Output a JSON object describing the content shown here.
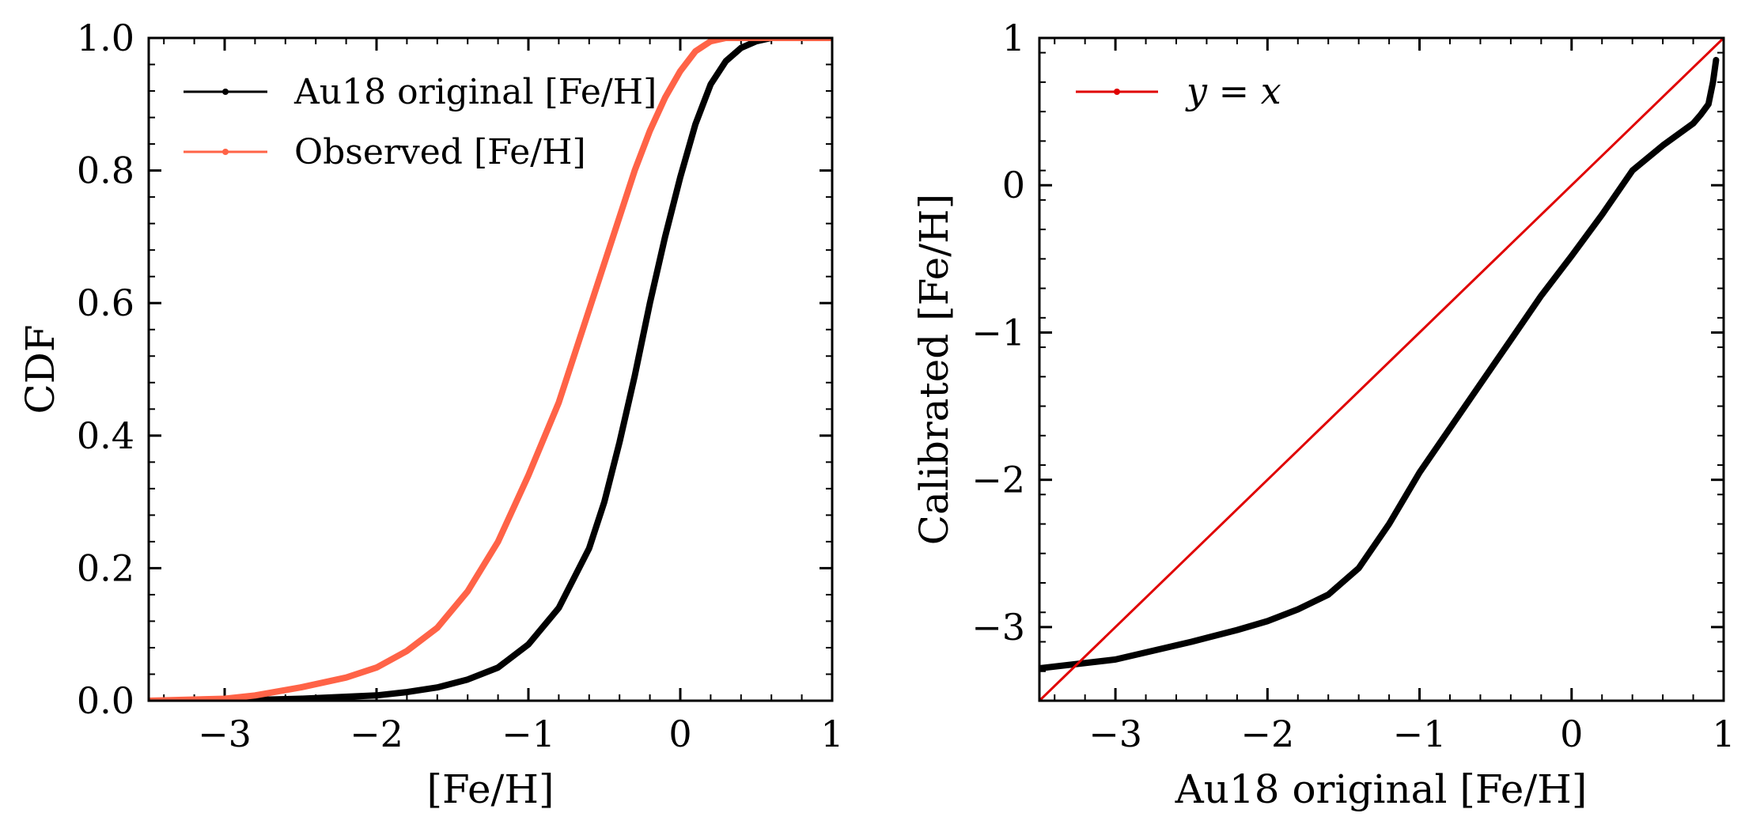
{
  "chart_data": [
    {
      "type": "line",
      "title": "",
      "xlabel": "[Fe/H]",
      "ylabel": "CDF",
      "xlim": [
        -3.5,
        1.0
      ],
      "ylim": [
        0.0,
        1.0
      ],
      "xticks": [
        -3,
        -2,
        -1,
        0,
        1
      ],
      "xtick_labels": [
        "−3",
        "−2",
        "−1",
        "0",
        "1"
      ],
      "yticks": [
        0.0,
        0.2,
        0.4,
        0.6,
        0.8,
        1.0
      ],
      "ytick_labels": [
        "0.0",
        "0.2",
        "0.4",
        "0.6",
        "0.8",
        "1.0"
      ],
      "grid": false,
      "legend_position": "top-left",
      "series": [
        {
          "name": "Au18 original [Fe/H]",
          "color": "#000000",
          "x": [
            -3.5,
            -3.0,
            -2.5,
            -2.0,
            -1.8,
            -1.6,
            -1.4,
            -1.2,
            -1.0,
            -0.8,
            -0.6,
            -0.5,
            -0.4,
            -0.3,
            -0.2,
            -0.1,
            0.0,
            0.1,
            0.2,
            0.3,
            0.4,
            0.5,
            0.6,
            0.8,
            1.0
          ],
          "y": [
            0.0,
            0.0,
            0.003,
            0.008,
            0.013,
            0.02,
            0.032,
            0.05,
            0.085,
            0.14,
            0.23,
            0.3,
            0.39,
            0.49,
            0.6,
            0.7,
            0.79,
            0.87,
            0.93,
            0.965,
            0.985,
            0.995,
            1.0,
            1.0,
            1.0
          ]
        },
        {
          "name": "Observed [Fe/H]",
          "color": "#FF6347",
          "x": [
            -3.5,
            -3.0,
            -2.8,
            -2.5,
            -2.2,
            -2.0,
            -1.8,
            -1.6,
            -1.4,
            -1.2,
            -1.0,
            -0.8,
            -0.7,
            -0.6,
            -0.5,
            -0.4,
            -0.3,
            -0.2,
            -0.1,
            0.0,
            0.1,
            0.2,
            0.3,
            0.5,
            1.0
          ],
          "y": [
            0.0,
            0.003,
            0.008,
            0.02,
            0.035,
            0.05,
            0.075,
            0.11,
            0.165,
            0.24,
            0.34,
            0.45,
            0.52,
            0.59,
            0.66,
            0.73,
            0.8,
            0.86,
            0.91,
            0.95,
            0.98,
            0.995,
            1.0,
            1.0,
            1.0
          ]
        }
      ]
    },
    {
      "type": "line",
      "title": "",
      "xlabel": "Au18 original [Fe/H]",
      "ylabel": "Calibrated [Fe/H]",
      "xlim": [
        -3.5,
        1.0
      ],
      "ylim": [
        -3.5,
        1.0
      ],
      "xticks": [
        -3,
        -2,
        -1,
        0,
        1
      ],
      "xtick_labels": [
        "−3",
        "−2",
        "−1",
        "0",
        "1"
      ],
      "yticks": [
        -3,
        -2,
        -1,
        0,
        1
      ],
      "ytick_labels": [
        "−3",
        "−2",
        "−1",
        "0",
        "1"
      ],
      "grid": false,
      "legend_position": "top-left",
      "series": [
        {
          "name": "",
          "color": "#000000",
          "x": [
            -3.5,
            -3.0,
            -2.5,
            -2.2,
            -2.0,
            -1.8,
            -1.6,
            -1.4,
            -1.2,
            -1.0,
            -0.8,
            -0.6,
            -0.4,
            -0.2,
            0.0,
            0.2,
            0.4,
            0.6,
            0.8,
            0.85,
            0.9,
            0.93,
            0.95
          ],
          "y": [
            -3.28,
            -3.22,
            -3.1,
            -3.02,
            -2.96,
            -2.88,
            -2.78,
            -2.6,
            -2.3,
            -1.95,
            -1.65,
            -1.35,
            -1.05,
            -0.75,
            -0.48,
            -0.2,
            0.1,
            0.27,
            0.42,
            0.48,
            0.55,
            0.7,
            0.85
          ]
        },
        {
          "name": "y = x",
          "color": "#E00000",
          "x": [
            -3.5,
            1.0
          ],
          "y": [
            -3.5,
            1.0
          ]
        }
      ]
    }
  ]
}
